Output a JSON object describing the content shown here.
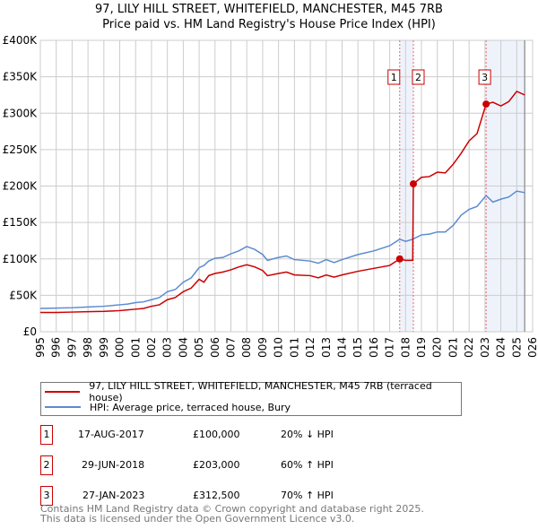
{
  "title": "97, LILY HILL STREET, WHITEFIELD, MANCHESTER, M45 7RB",
  "subtitle": "Price paid vs. HM Land Registry's House Price Index (HPI)",
  "chart_data": {
    "type": "line",
    "title": "97, LILY HILL STREET, WHITEFIELD, MANCHESTER, M45 7RB",
    "subtitle": "Price paid vs. HM Land Registry's House Price Index (HPI)",
    "xlim": [
      1995,
      2026
    ],
    "ylim": [
      0,
      400000
    ],
    "x_ticks": [
      "1995",
      "1996",
      "1997",
      "1998",
      "1999",
      "2000",
      "2001",
      "2002",
      "2003",
      "2004",
      "2005",
      "2006",
      "2007",
      "2008",
      "2009",
      "2010",
      "2011",
      "2012",
      "2013",
      "2014",
      "2015",
      "2016",
      "2017",
      "2018",
      "2019",
      "2020",
      "2021",
      "2022",
      "2023",
      "2024",
      "2025",
      "2026"
    ],
    "y_ticks": [
      {
        "v": 0,
        "l": "£0"
      },
      {
        "v": 50000,
        "l": "£50K"
      },
      {
        "v": 100000,
        "l": "£100K"
      },
      {
        "v": 150000,
        "l": "£150K"
      },
      {
        "v": 200000,
        "l": "£200K"
      },
      {
        "v": 250000,
        "l": "£250K"
      },
      {
        "v": 300000,
        "l": "£300K"
      },
      {
        "v": 350000,
        "l": "£350K"
      },
      {
        "v": 400000,
        "l": "£400K"
      }
    ],
    "grid": true,
    "forecast_start": 2025.5,
    "series": [
      {
        "name": "97, LILY HILL STREET, WHITEFIELD, MANCHESTER, M45 7RB (terraced house)",
        "color": "#cc0000",
        "x": [
          1995,
          1996,
          1997,
          1998,
          1999,
          2000,
          2000.5,
          2001,
          2001.5,
          2002,
          2002.5,
          2003,
          2003.5,
          2004,
          2004.5,
          2005,
          2005.3,
          2005.6,
          2006,
          2006.5,
          2007,
          2007.5,
          2008,
          2008.5,
          2009,
          2009.3,
          2010,
          2010.5,
          2011,
          2012,
          2012.5,
          2013,
          2013.5,
          2014,
          2015,
          2016,
          2017,
          2017.63,
          2018,
          2018.45,
          2018.49,
          2019,
          2019.5,
          2020,
          2020.5,
          2021,
          2021.5,
          2022,
          2022.5,
          2023.07,
          2023.5,
          2024,
          2024.5,
          2025,
          2025.5
        ],
        "y": [
          26500,
          26500,
          27000,
          27500,
          28000,
          29000,
          30000,
          31000,
          32000,
          35000,
          37000,
          44000,
          47000,
          55000,
          60000,
          72000,
          68000,
          77000,
          80000,
          82000,
          85000,
          89000,
          92000,
          89000,
          84000,
          77000,
          80000,
          82000,
          78000,
          77000,
          74000,
          78000,
          75000,
          78000,
          83000,
          87000,
          91000,
          100000,
          98000,
          98000,
          203000,
          212000,
          213000,
          219000,
          218000,
          230000,
          245000,
          262000,
          272000,
          312500,
          315000,
          310000,
          316000,
          330000,
          325000
        ]
      },
      {
        "name": "HPI: Average price, terraced house, Bury",
        "color": "#5b8bd0",
        "x": [
          1995,
          1996,
          1997,
          1998,
          1999,
          2000,
          2000.5,
          2001,
          2001.5,
          2002,
          2002.5,
          2003,
          2003.5,
          2004,
          2004.5,
          2005,
          2005.3,
          2005.6,
          2006,
          2006.5,
          2007,
          2007.5,
          2008,
          2008.5,
          2009,
          2009.3,
          2010,
          2010.5,
          2011,
          2012,
          2012.5,
          2013,
          2013.5,
          2014,
          2015,
          2016,
          2017,
          2017.63,
          2018,
          2018.45,
          2019,
          2019.5,
          2020,
          2020.5,
          2021,
          2021.5,
          2022,
          2022.5,
          2023.07,
          2023.5,
          2024,
          2024.5,
          2025,
          2025.5
        ],
        "y": [
          32000,
          32500,
          33000,
          34000,
          35000,
          37000,
          38000,
          40000,
          41000,
          44000,
          47000,
          55000,
          58000,
          68000,
          74000,
          88000,
          91000,
          97000,
          101000,
          102000,
          107000,
          111000,
          117000,
          113000,
          106000,
          98000,
          102000,
          104000,
          99000,
          97000,
          94000,
          99000,
          95000,
          99000,
          106000,
          111000,
          118000,
          127000,
          124000,
          127000,
          133000,
          134000,
          137000,
          137000,
          146000,
          160000,
          168000,
          172000,
          187000,
          178000,
          182000,
          185000,
          193000,
          191000
        ]
      }
    ],
    "markers": [
      {
        "label": "1",
        "x": 2017.63,
        "y": 100000
      },
      {
        "label": "2",
        "x": 2018.49,
        "y": 203000
      },
      {
        "label": "3",
        "x": 2023.07,
        "y": 312500
      }
    ],
    "legend_position": "below"
  },
  "table": [
    {
      "num": "1",
      "date": "17-AUG-2017",
      "price": "£100,000",
      "hpi": "20% ↓ HPI"
    },
    {
      "num": "2",
      "date": "29-JUN-2018",
      "price": "£203,000",
      "hpi": "60% ↑ HPI"
    },
    {
      "num": "3",
      "date": "27-JAN-2023",
      "price": "£312,500",
      "hpi": "70% ↑ HPI"
    }
  ],
  "footer": [
    "Contains HM Land Registry data © Crown copyright and database right 2025.",
    "This data is licensed under the Open Government Licence v3.0."
  ]
}
